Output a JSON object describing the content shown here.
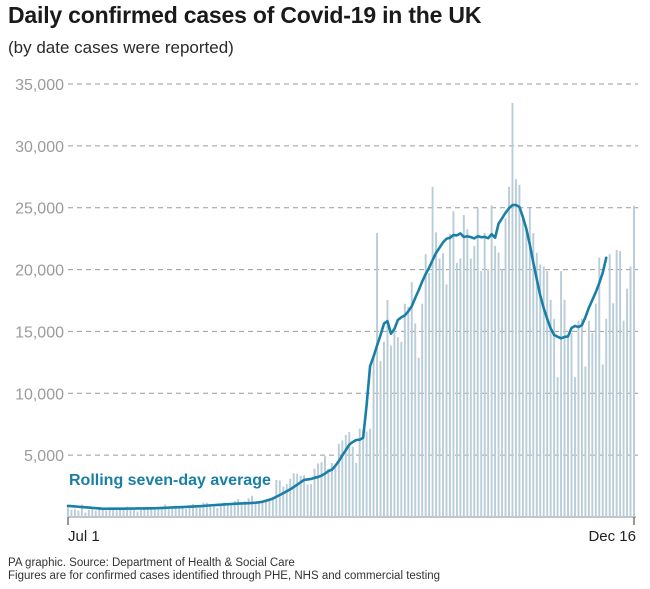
{
  "header": {
    "title": "Daily confirmed cases of Covid-19 in the UK",
    "subtitle": "(by date cases were reported)"
  },
  "footer": {
    "source": "PA graphic. Source: Department of Health & Social Care",
    "note": "Figures are for confirmed cases identified through PHE, NHS and commercial testing"
  },
  "colors": {
    "bars": "#b9cdd9",
    "line": "#1a7fa6",
    "grid": "#9a9a9a",
    "axis_text": "#9b9b9b",
    "label_text": "#1a7fa6"
  },
  "chart_data": {
    "type": "bar",
    "title": "Daily confirmed cases of Covid-19 in the UK",
    "subtitle": "(by date cases were reported)",
    "xlabel": "",
    "ylabel": "",
    "ylim": [
      0,
      35000
    ],
    "yticks": [
      5000,
      10000,
      15000,
      20000,
      25000,
      30000,
      35000
    ],
    "ytick_labels": [
      "5,000",
      "10,000",
      "15,000",
      "20,000",
      "25,000",
      "30,000",
      "35,000"
    ],
    "x_start": "2020-07-01",
    "x_end": "2020-12-16",
    "xtick_labels": [
      "Jul 1",
      "Dec 16"
    ],
    "grid": true,
    "series": [
      {
        "name": "Daily confirmed cases",
        "type": "bar",
        "values": [
          829,
          576,
          624,
          516,
          1008,
          352,
          581,
          630,
          512,
          820,
          650,
          530,
          598,
          650,
          538,
          642,
          687,
          827,
          726,
          580,
          445,
          560,
          768,
          769,
          767,
          743,
          685,
          763,
          1013,
          846,
          880,
          938,
          773,
          742,
          670,
          950,
          1062,
          871,
          758,
          1148,
          1148,
          1040,
          1012,
          713,
          1089,
          1182,
          1033,
          1041,
          1288,
          1441,
          1182,
          1276,
          1522,
          1715,
          1108,
          1276,
          1184,
          1290,
          1406,
          1522,
          2988,
          2948,
          2460,
          2659,
          3105,
          3539,
          3497,
          3330,
          3395,
          2621,
          2678,
          3899,
          4322,
          4422,
          4926,
          3899,
          4368,
          4044,
          5930,
          6178,
          6634,
          6874,
          5693,
          4368,
          7143,
          7108,
          6914,
          7143,
          12872,
          22961,
          12594,
          14162,
          17540,
          13864,
          15166,
          14542,
          14162,
          17234,
          16982,
          18980,
          15650,
          12872,
          17234,
          21242,
          19724,
          26688,
          23012,
          20890,
          21330,
          18804,
          22885,
          24701,
          20530,
          20890,
          24405,
          23254,
          20890,
          21915,
          24957,
          19875,
          22961,
          20018,
          25177,
          21915,
          21363,
          20018,
          24141,
          26688,
          33470,
          27301,
          26860,
          24141,
          23287,
          24957,
          22950,
          21363,
          20412,
          20252,
          19875,
          17555,
          16022,
          11299,
          19875,
          17555,
          14718,
          14875,
          11299,
          15871,
          16022,
          12155,
          15871,
          14875,
          17234,
          20964,
          12330,
          16022,
          21242,
          17272,
          21586,
          21502,
          15871,
          18447,
          20252,
          25161
        ]
      },
      {
        "name": "Rolling seven-day average",
        "type": "line",
        "values": [
          900,
          874,
          852,
          829,
          806,
          783,
          760,
          737,
          714,
          691,
          668,
          667,
          669,
          670,
          672,
          674,
          676,
          679,
          681,
          684,
          689,
          693,
          696,
          698,
          703,
          708,
          717,
          730,
          744,
          758,
          770,
          783,
          794,
          805,
          819,
          833,
          847,
          862,
          878,
          897,
          919,
          941,
          960,
          978,
          997,
          1016,
          1034,
          1052,
          1069,
          1085,
          1096,
          1108,
          1120,
          1133,
          1154,
          1186,
          1232,
          1316,
          1393,
          1491,
          1637,
          1778,
          1929,
          2085,
          2245,
          2417,
          2606,
          2810,
          3001,
          3038,
          3074,
          3167,
          3238,
          3340,
          3505,
          3712,
          3825,
          4142,
          4525,
          4979,
          5402,
          5850,
          6061,
          6223,
          6247,
          6408,
          9061,
          12203,
          12969,
          13864,
          14698,
          15635,
          15836,
          14813,
          15193,
          15926,
          16147,
          16294,
          16626,
          17040,
          17710,
          18330,
          19032,
          19639,
          20150,
          20764,
          21351,
          21768,
          22195,
          22492,
          22569,
          22789,
          22766,
          22924,
          22632,
          22693,
          22622,
          22518,
          22697,
          22618,
          22643,
          22538,
          22858,
          22575,
          23707,
          24141,
          24587,
          24958,
          25213,
          25214,
          25068,
          24244,
          23287,
          22016,
          20570,
          19234,
          17910,
          16878,
          16022,
          15250,
          14718,
          14570,
          14446,
          14558,
          14596,
          15281,
          15443,
          15352,
          15510,
          16147,
          16909,
          17543,
          18175,
          18912,
          19751,
          20952
        ]
      }
    ],
    "annotations": [
      "Rolling seven-day average"
    ]
  }
}
